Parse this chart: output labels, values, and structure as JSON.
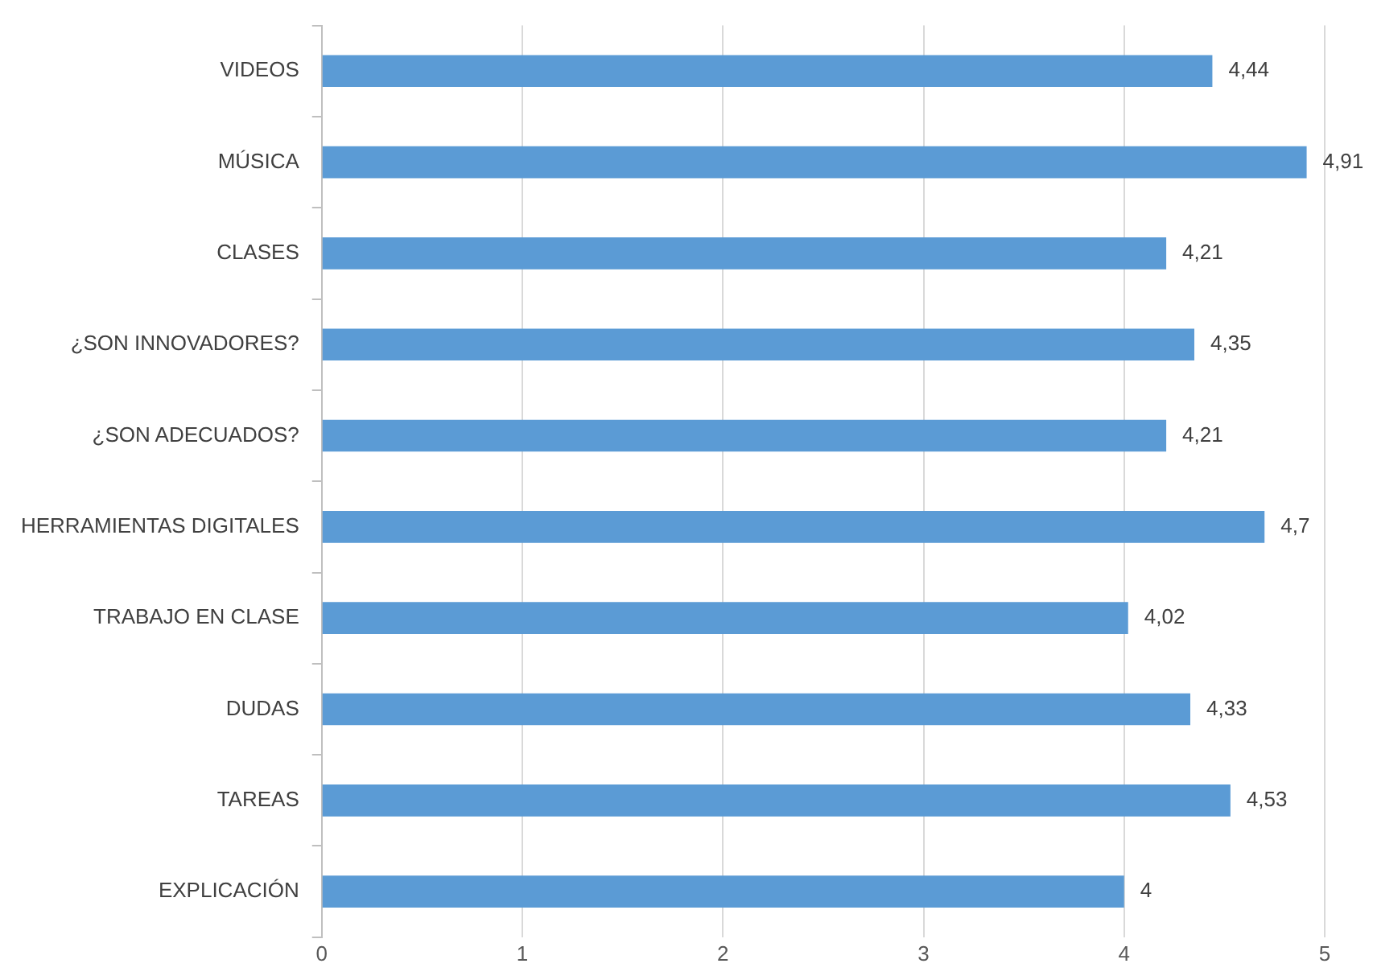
{
  "chart_data": {
    "type": "bar",
    "orientation": "horizontal",
    "categories": [
      "VIDEOS",
      "MÚSICA",
      "CLASES",
      "¿SON INNOVADORES?",
      "¿SON ADECUADOS?",
      "HERRAMIENTAS DIGITALES",
      "TRABAJO EN CLASE",
      "DUDAS",
      "TAREAS",
      "EXPLICACIÓN"
    ],
    "values": [
      4.44,
      4.91,
      4.21,
      4.35,
      4.21,
      4.7,
      4.02,
      4.33,
      4.53,
      4
    ],
    "value_labels": [
      "4,44",
      "4,91",
      "4,21",
      "4,35",
      "4,21",
      "4,7",
      "4,02",
      "4,33",
      "4,53",
      "4"
    ],
    "color": "#5b9bd5",
    "xlim": [
      0,
      5
    ],
    "xticks": [
      0,
      1,
      2,
      3,
      4,
      5
    ],
    "grid": "x",
    "legend": false
  }
}
